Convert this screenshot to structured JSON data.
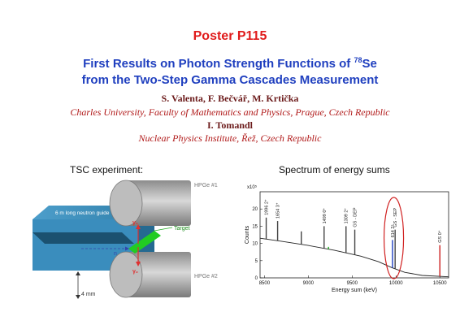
{
  "poster": {
    "id_label": "Poster P115",
    "title_line1_pre": "First Results on Photon Strength Functions of ",
    "title_sup": "78",
    "title_line1_post": "Se",
    "title_line2": "from the Two-Step Gamma Cascades Measurement",
    "authors": "S. Valenta, F. Bečvář, M. Krtička",
    "affiliation1": "Charles University, Faculty of Mathematics and Physics, Prague, Czech Republic",
    "author2": "I. Tomandl",
    "affiliation2": "Nuclear Physics Institute, Řež, Czech Republic"
  },
  "left_figure": {
    "heading": "TSC experiment:",
    "labels": {
      "guide": "6 m long neutron guide",
      "hpge1": "HPGe #1",
      "hpge2": "HPGe #2",
      "target": "Target",
      "gamma1": "γ₁",
      "gamma2": "γ₂",
      "neutron": "n",
      "scale": "4 mm"
    },
    "colors": {
      "guide": "#2e7ea8",
      "detector": "#a9a9a9",
      "target": "#22cc22",
      "gamma": "#e03030"
    }
  },
  "chart_data": {
    "type": "line",
    "heading": "Spectrum of energy sums",
    "xlabel": "Energy sum (keV)",
    "ylabel": "Counts",
    "y_multiplier": "x10⁵",
    "xlim": [
      8450,
      10600
    ],
    "ylim": [
      0,
      25
    ],
    "x_ticks": [
      8500,
      9000,
      9500,
      10000,
      10500
    ],
    "y_ticks": [
      0,
      5,
      10,
      15,
      20
    ],
    "baseline": [
      {
        "x": 8450,
        "y": 11.5
      },
      {
        "x": 8700,
        "y": 10.6
      },
      {
        "x": 9000,
        "y": 9.4
      },
      {
        "x": 9300,
        "y": 8.0
      },
      {
        "x": 9600,
        "y": 6.3
      },
      {
        "x": 9800,
        "y": 4.7
      },
      {
        "x": 9950,
        "y": 3.0
      },
      {
        "x": 10100,
        "y": 1.6
      },
      {
        "x": 10300,
        "y": 0.7
      },
      {
        "x": 10600,
        "y": 0.3
      }
    ],
    "peaks": [
      {
        "x": 8520,
        "y": 17.5,
        "label": "1996 2⁺",
        "color": "#444444"
      },
      {
        "x": 8650,
        "y": 16.5,
        "label": "1654 3⁺",
        "color": "#444444"
      },
      {
        "x": 8920,
        "y": 13.5,
        "label": "",
        "color": "#444444"
      },
      {
        "x": 9180,
        "y": 15.0,
        "label": "1499 0⁺",
        "color": "#444444"
      },
      {
        "x": 9230,
        "y": 9.0,
        "label": "",
        "color": "#22aa22"
      },
      {
        "x": 9430,
        "y": 15.0,
        "label": "1309 2⁺",
        "color": "#444444"
      },
      {
        "x": 9530,
        "y": 14.0,
        "label": "GS - DEP",
        "color": "#444444"
      },
      {
        "x": 9960,
        "y": 11.0,
        "label": "614 2⁺",
        "color": "#1f3fbf"
      },
      {
        "x": 9990,
        "y": 14.0,
        "label": "GS - SEP",
        "color": "#444444"
      },
      {
        "x": 10500,
        "y": 9.5,
        "label": "GS 0⁺",
        "color": "#cc2020"
      }
    ],
    "highlight": {
      "x_center": 9975,
      "color": "#d02020"
    }
  }
}
